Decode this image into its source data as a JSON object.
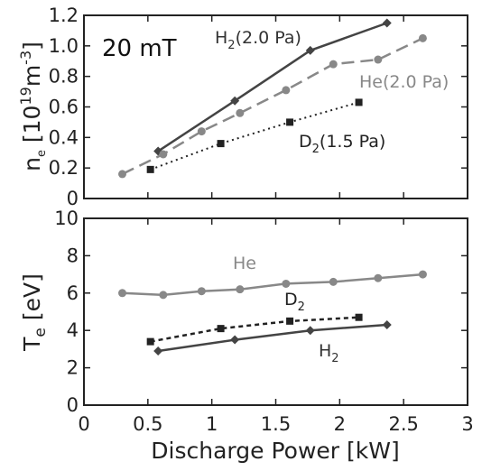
{
  "chart_data": [
    {
      "type": "line",
      "xlabel": "",
      "ylabel": "n_e [10^19 m^-3]",
      "xlim": [
        0,
        3
      ],
      "ylim": [
        0,
        1.2
      ],
      "yticks": [
        "0",
        "0.2",
        "0.4",
        "0.6",
        "0.8",
        "1.0",
        "1.2"
      ],
      "xticks_shown": false,
      "annotations": [
        {
          "id": "field",
          "text": "20 mT"
        }
      ],
      "series": [
        {
          "name": "H2(2.0 Pa)",
          "label_main": "H",
          "label_sub": "2",
          "label_rest": "(2.0 Pa)",
          "color": "#444444",
          "dash": "solid",
          "marker": "diamond",
          "x": [
            0.58,
            1.18,
            1.77,
            2.37
          ],
          "y": [
            0.31,
            0.64,
            0.97,
            1.15
          ]
        },
        {
          "name": "He(2.0 Pa)",
          "label_main": "He(2.0 Pa)",
          "label_sub": "",
          "label_rest": "",
          "color": "#888888",
          "dash": "long-dash",
          "marker": "circle",
          "x": [
            0.3,
            0.62,
            0.92,
            1.22,
            1.58,
            1.95,
            2.3,
            2.65
          ],
          "y": [
            0.16,
            0.29,
            0.44,
            0.56,
            0.71,
            0.88,
            0.91,
            1.05
          ]
        },
        {
          "name": "D2(1.5 Pa)",
          "label_main": "D",
          "label_sub": "2",
          "label_rest": "(1.5 Pa)",
          "color": "#222222",
          "dash": "dotted",
          "marker": "square",
          "x": [
            0.52,
            1.07,
            1.61,
            2.15
          ],
          "y": [
            0.19,
            0.36,
            0.5,
            0.63
          ]
        }
      ]
    },
    {
      "type": "line",
      "xlabel": "Discharge Power [kW]",
      "ylabel": "T_e [eV]",
      "xlim": [
        0,
        3
      ],
      "ylim": [
        0,
        10
      ],
      "xticks": [
        "0",
        "0.5",
        "1",
        "1.5",
        "2",
        "2.5",
        "3"
      ],
      "yticks": [
        "0",
        "2",
        "4",
        "6",
        "8",
        "10"
      ],
      "series": [
        {
          "name": "He",
          "label_main": "He",
          "label_sub": "",
          "label_rest": "",
          "color": "#888888",
          "dash": "solid",
          "marker": "circle",
          "x": [
            0.3,
            0.62,
            0.92,
            1.22,
            1.58,
            1.95,
            2.3,
            2.65
          ],
          "y": [
            6.0,
            5.9,
            6.1,
            6.2,
            6.5,
            6.6,
            6.8,
            7.0
          ]
        },
        {
          "name": "D2",
          "label_main": "D",
          "label_sub": "2",
          "label_rest": "",
          "color": "#222222",
          "dash": "short-dash",
          "marker": "square",
          "x": [
            0.52,
            1.07,
            1.61,
            2.15
          ],
          "y": [
            3.4,
            4.1,
            4.5,
            4.7
          ]
        },
        {
          "name": "H2",
          "label_main": "H",
          "label_sub": "2",
          "label_rest": "",
          "color": "#444444",
          "dash": "solid",
          "marker": "diamond",
          "x": [
            0.58,
            1.18,
            1.77,
            2.37
          ],
          "y": [
            2.9,
            3.5,
            4.0,
            4.3
          ]
        }
      ]
    }
  ]
}
